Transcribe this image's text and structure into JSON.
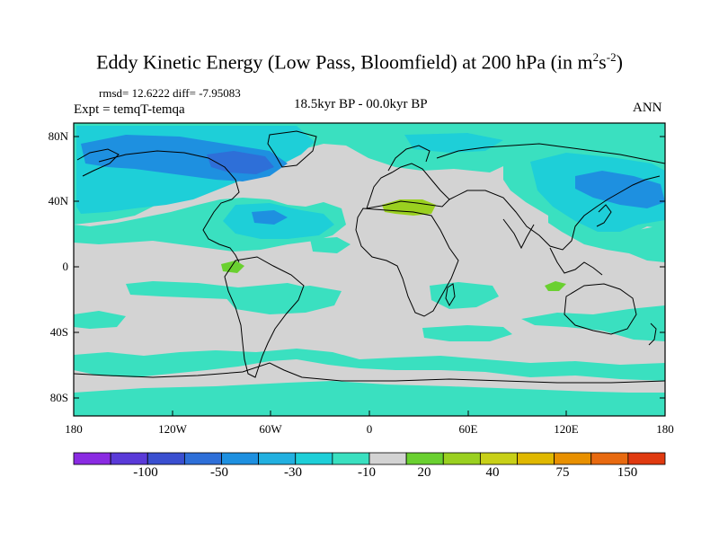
{
  "title_main": "Eddy Kinetic Energy (Low Pass, Bloomfield) at 200 hPa (in m",
  "title_sup1": "2",
  "title_mid": "s",
  "title_sup2": "-2",
  "title_end": ")",
  "stats": "rmsd= 12.6222 diff= -7.95083",
  "experiment": "Expt = temqT-temqa",
  "period": "18.5kyr BP - 00.0kyr BP",
  "season": "ANN",
  "lat_ticks": [
    "80N",
    "40N",
    "0",
    "40S",
    "80S"
  ],
  "lon_ticks": [
    "180",
    "120W",
    "60W",
    "0",
    "60E",
    "120E",
    "180"
  ],
  "colorbar_labels": [
    "-100",
    "-50",
    "-30",
    "-10",
    "20",
    "40",
    "75",
    "150"
  ],
  "colorbar_colors": [
    "#8a2be2",
    "#5a3ad8",
    "#3a4fd0",
    "#2e6fd8",
    "#1e90e0",
    "#22b0e0",
    "#1ecfd8",
    "#3ae0c0",
    "#d3d3d3",
    "#6ad030",
    "#9ad020",
    "#c8d018",
    "#e0b800",
    "#e89000",
    "#e86a10",
    "#e03a10"
  ],
  "colors": {
    "land_neutral": "#d3d3d3",
    "weak_negative": "#3ae0c0",
    "moderate_negative": "#1ecfd8",
    "strong_negative": "#1e90e0",
    "very_negative": "#2e6fd8",
    "weak_positive": "#6ad030",
    "positive": "#9ad020",
    "coastline": "#000000"
  }
}
